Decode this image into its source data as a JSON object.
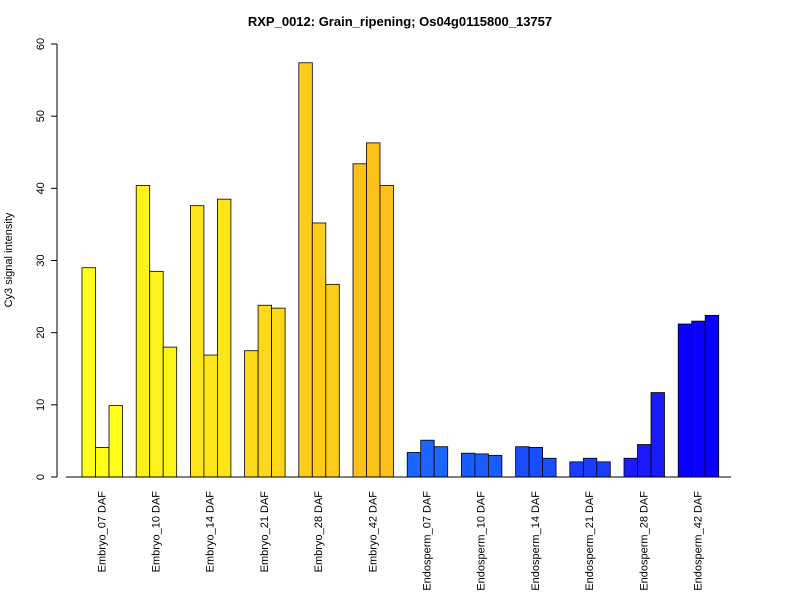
{
  "chart_data": {
    "type": "bar",
    "title": "RXP_0012: Grain_ripening; Os04g0115800_13757",
    "xlabel": "",
    "ylabel": "Cy3 signal intensity",
    "ylim": [
      0,
      60
    ],
    "yticks": [
      0,
      10,
      20,
      30,
      40,
      50,
      60
    ],
    "categories": [
      "Embryo_07 DAF",
      "Embryo_10 DAF",
      "Embryo_14 DAF",
      "Embryo_21 DAF",
      "Embryo_28 DAF",
      "Embryo_42 DAF",
      "Endosperm_07 DAF",
      "Endosperm_10 DAF",
      "Endosperm_14 DAF",
      "Endosperm_21 DAF",
      "Endosperm_28 DAF",
      "Endosperm_42 DAF"
    ],
    "colors": [
      "#ffff1a",
      "#fdf21a",
      "#fde51a",
      "#fdd81a",
      "#fdcc1a",
      "#fcc01a",
      "#1a66ff",
      "#1a5cff",
      "#1a4dff",
      "#1a3dff",
      "#1a1aff",
      "#0a00ff"
    ],
    "groups": [
      [
        29.0,
        4.1,
        9.9
      ],
      [
        40.4,
        28.5,
        18.0
      ],
      [
        37.6,
        16.9,
        38.5
      ],
      [
        17.5,
        23.8,
        23.4
      ],
      [
        57.4,
        35.2,
        26.7
      ],
      [
        43.4,
        46.3,
        40.4
      ],
      [
        3.4,
        5.1,
        4.2
      ],
      [
        3.3,
        3.2,
        3.0
      ],
      [
        4.2,
        4.1,
        2.6
      ],
      [
        2.1,
        2.6,
        2.1
      ],
      [
        2.6,
        4.5,
        11.7
      ],
      [
        21.2,
        21.6,
        22.4
      ]
    ],
    "grid": false,
    "legend": "none"
  }
}
